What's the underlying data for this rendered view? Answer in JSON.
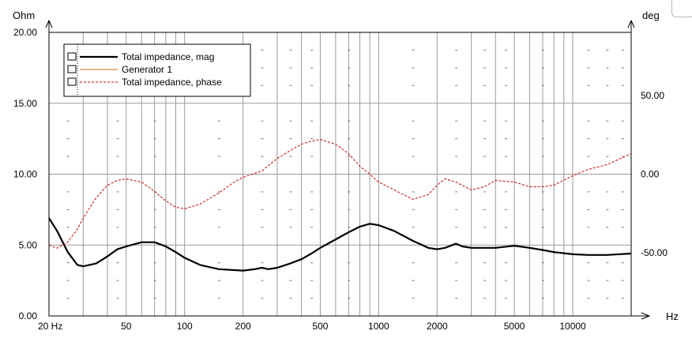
{
  "chart_data": {
    "type": "line",
    "x_unit": "Hz",
    "y_left_unit": "Ohm",
    "y_right_unit": "deg",
    "x_scale": "log",
    "xlim": [
      20,
      20000
    ],
    "ylim_left": [
      0,
      20
    ],
    "ylim_right": [
      -90,
      90
    ],
    "grid": true,
    "legend_position": "top-left",
    "x_tick_labels": [
      {
        "value": 20,
        "label": "20 Hz"
      },
      {
        "value": 50,
        "label": "50"
      },
      {
        "value": 100,
        "label": "100"
      },
      {
        "value": 200,
        "label": "200"
      },
      {
        "value": 500,
        "label": "500"
      },
      {
        "value": 1000,
        "label": "1000"
      },
      {
        "value": 2000,
        "label": "2000"
      },
      {
        "value": 5000,
        "label": "5000"
      },
      {
        "value": 10000,
        "label": "10000"
      }
    ],
    "y_left_tick_labels": [
      {
        "value": 0,
        "label": "0.00"
      },
      {
        "value": 5,
        "label": "5.00"
      },
      {
        "value": 10,
        "label": "10.00"
      },
      {
        "value": 15,
        "label": "15.00"
      },
      {
        "value": 20,
        "label": "20.00"
      }
    ],
    "y_right_tick_labels": [
      {
        "value": 50,
        "label": "50.00"
      },
      {
        "value": 0,
        "label": "0.00"
      },
      {
        "value": -50,
        "label": "-50.00"
      }
    ],
    "series": [
      {
        "name": "Total impedance, mag",
        "axis": "left",
        "color": "#000000",
        "style": "solid-thick",
        "points": [
          [
            20,
            6.9
          ],
          [
            22,
            6.0
          ],
          [
            25,
            4.5
          ],
          [
            28,
            3.6
          ],
          [
            30,
            3.5
          ],
          [
            35,
            3.7
          ],
          [
            40,
            4.2
          ],
          [
            45,
            4.7
          ],
          [
            50,
            4.9
          ],
          [
            60,
            5.2
          ],
          [
            70,
            5.2
          ],
          [
            80,
            4.9
          ],
          [
            90,
            4.5
          ],
          [
            100,
            4.1
          ],
          [
            120,
            3.6
          ],
          [
            150,
            3.3
          ],
          [
            200,
            3.2
          ],
          [
            230,
            3.3
          ],
          [
            250,
            3.4
          ],
          [
            270,
            3.3
          ],
          [
            300,
            3.4
          ],
          [
            350,
            3.7
          ],
          [
            400,
            4.0
          ],
          [
            450,
            4.4
          ],
          [
            500,
            4.8
          ],
          [
            600,
            5.4
          ],
          [
            700,
            5.9
          ],
          [
            800,
            6.3
          ],
          [
            900,
            6.5
          ],
          [
            1000,
            6.4
          ],
          [
            1200,
            6.0
          ],
          [
            1500,
            5.3
          ],
          [
            1800,
            4.8
          ],
          [
            2000,
            4.7
          ],
          [
            2200,
            4.8
          ],
          [
            2500,
            5.1
          ],
          [
            2700,
            4.9
          ],
          [
            3000,
            4.8
          ],
          [
            4000,
            4.8
          ],
          [
            5000,
            4.95
          ],
          [
            6000,
            4.8
          ],
          [
            7000,
            4.65
          ],
          [
            8000,
            4.5
          ],
          [
            10000,
            4.35
          ],
          [
            12000,
            4.3
          ],
          [
            15000,
            4.3
          ],
          [
            20000,
            4.4
          ]
        ]
      },
      {
        "name": "Generator 1",
        "axis": "left",
        "color": "#d2691e",
        "style": "thin",
        "points": []
      },
      {
        "name": "Total impedance, phase",
        "axis": "right",
        "color": "#cc0000",
        "style": "dashed",
        "points": [
          [
            20,
            -45
          ],
          [
            22,
            -47
          ],
          [
            25,
            -43
          ],
          [
            28,
            -35
          ],
          [
            30,
            -28
          ],
          [
            35,
            -15
          ],
          [
            40,
            -7
          ],
          [
            45,
            -4
          ],
          [
            50,
            -3
          ],
          [
            60,
            -5
          ],
          [
            70,
            -11
          ],
          [
            80,
            -17
          ],
          [
            90,
            -21
          ],
          [
            100,
            -22
          ],
          [
            120,
            -19
          ],
          [
            150,
            -12
          ],
          [
            180,
            -5
          ],
          [
            200,
            -2
          ],
          [
            250,
            2
          ],
          [
            300,
            10
          ],
          [
            350,
            15
          ],
          [
            400,
            19
          ],
          [
            450,
            21
          ],
          [
            500,
            22
          ],
          [
            600,
            19
          ],
          [
            700,
            13
          ],
          [
            800,
            5
          ],
          [
            900,
            0
          ],
          [
            1000,
            -5
          ],
          [
            1200,
            -10
          ],
          [
            1500,
            -16
          ],
          [
            1800,
            -13
          ],
          [
            2000,
            -7
          ],
          [
            2200,
            -3
          ],
          [
            2500,
            -5
          ],
          [
            3000,
            -10
          ],
          [
            3500,
            -8
          ],
          [
            4000,
            -4
          ],
          [
            5000,
            -5
          ],
          [
            6000,
            -8
          ],
          [
            7000,
            -8
          ],
          [
            8000,
            -7
          ],
          [
            10000,
            -1
          ],
          [
            12000,
            3
          ],
          [
            15000,
            6
          ],
          [
            20000,
            13
          ]
        ]
      }
    ]
  }
}
